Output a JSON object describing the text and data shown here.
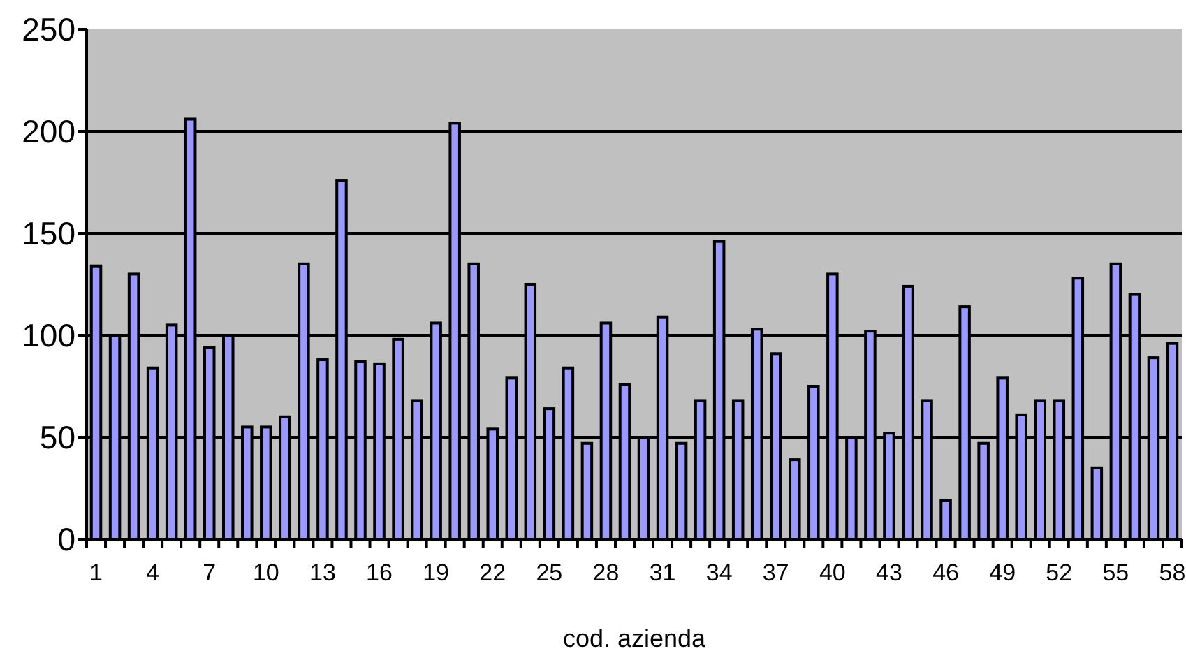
{
  "chart_data": {
    "type": "bar",
    "xlabel": "cod. azienda",
    "categories": [
      "1",
      null,
      null,
      "4",
      null,
      null,
      "7",
      null,
      null,
      "10",
      null,
      null,
      "13",
      null,
      null,
      "16",
      null,
      null,
      "19",
      null,
      null,
      "22",
      null,
      null,
      "25",
      null,
      null,
      "28",
      null,
      null,
      "31",
      null,
      null,
      "34",
      null,
      null,
      "37",
      null,
      null,
      "40",
      null,
      null,
      "43",
      null,
      null,
      "46",
      null,
      null,
      "49",
      null,
      null,
      "52",
      null,
      null,
      "55",
      null,
      null,
      "58"
    ],
    "values": [
      134,
      100,
      130,
      84,
      105,
      206,
      94,
      100,
      55,
      55,
      60,
      135,
      88,
      176,
      87,
      86,
      98,
      68,
      106,
      204,
      135,
      54,
      79,
      125,
      64,
      84,
      47,
      106,
      76,
      50,
      109,
      47,
      68,
      146,
      68,
      103,
      91,
      39,
      75,
      130,
      50,
      102,
      52,
      124,
      68,
      19,
      114,
      47,
      79,
      61,
      68,
      68,
      128,
      35,
      135,
      120,
      89,
      96
    ],
    "color": "#9999ff",
    "ylim": [
      0,
      250
    ],
    "yticks": [
      0,
      50,
      100,
      150,
      200,
      250
    ],
    "grid": "y"
  }
}
